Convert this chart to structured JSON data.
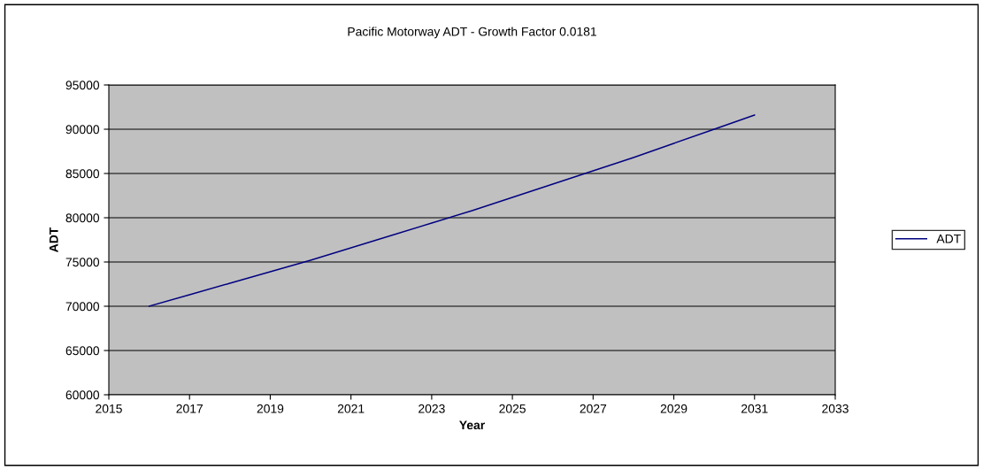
{
  "chart_data": {
    "type": "line",
    "title": "Pacific Motorway ADT - Growth Factor 0.0181",
    "xlabel": "Year",
    "ylabel": "ADT",
    "x": [
      2016,
      2017,
      2018,
      2019,
      2020,
      2021,
      2022,
      2023,
      2024,
      2025,
      2026,
      2027,
      2028,
      2029,
      2030,
      2031
    ],
    "series": [
      {
        "name": "ADT",
        "color": "#000080",
        "values": [
          70000,
          71300,
          72600,
          73900,
          75200,
          76600,
          78000,
          79400,
          80800,
          82300,
          83800,
          85300,
          86800,
          88400,
          90000,
          91600
        ]
      }
    ],
    "xlim": [
      2015,
      2033
    ],
    "xticks": [
      2015,
      2017,
      2019,
      2021,
      2023,
      2025,
      2027,
      2029,
      2031,
      2033
    ],
    "ylim": [
      60000,
      95000
    ],
    "yticks": [
      60000,
      65000,
      70000,
      75000,
      80000,
      85000,
      90000,
      95000
    ],
    "grid": "y",
    "legend": "right",
    "marker": "none",
    "line_style": "solid"
  }
}
